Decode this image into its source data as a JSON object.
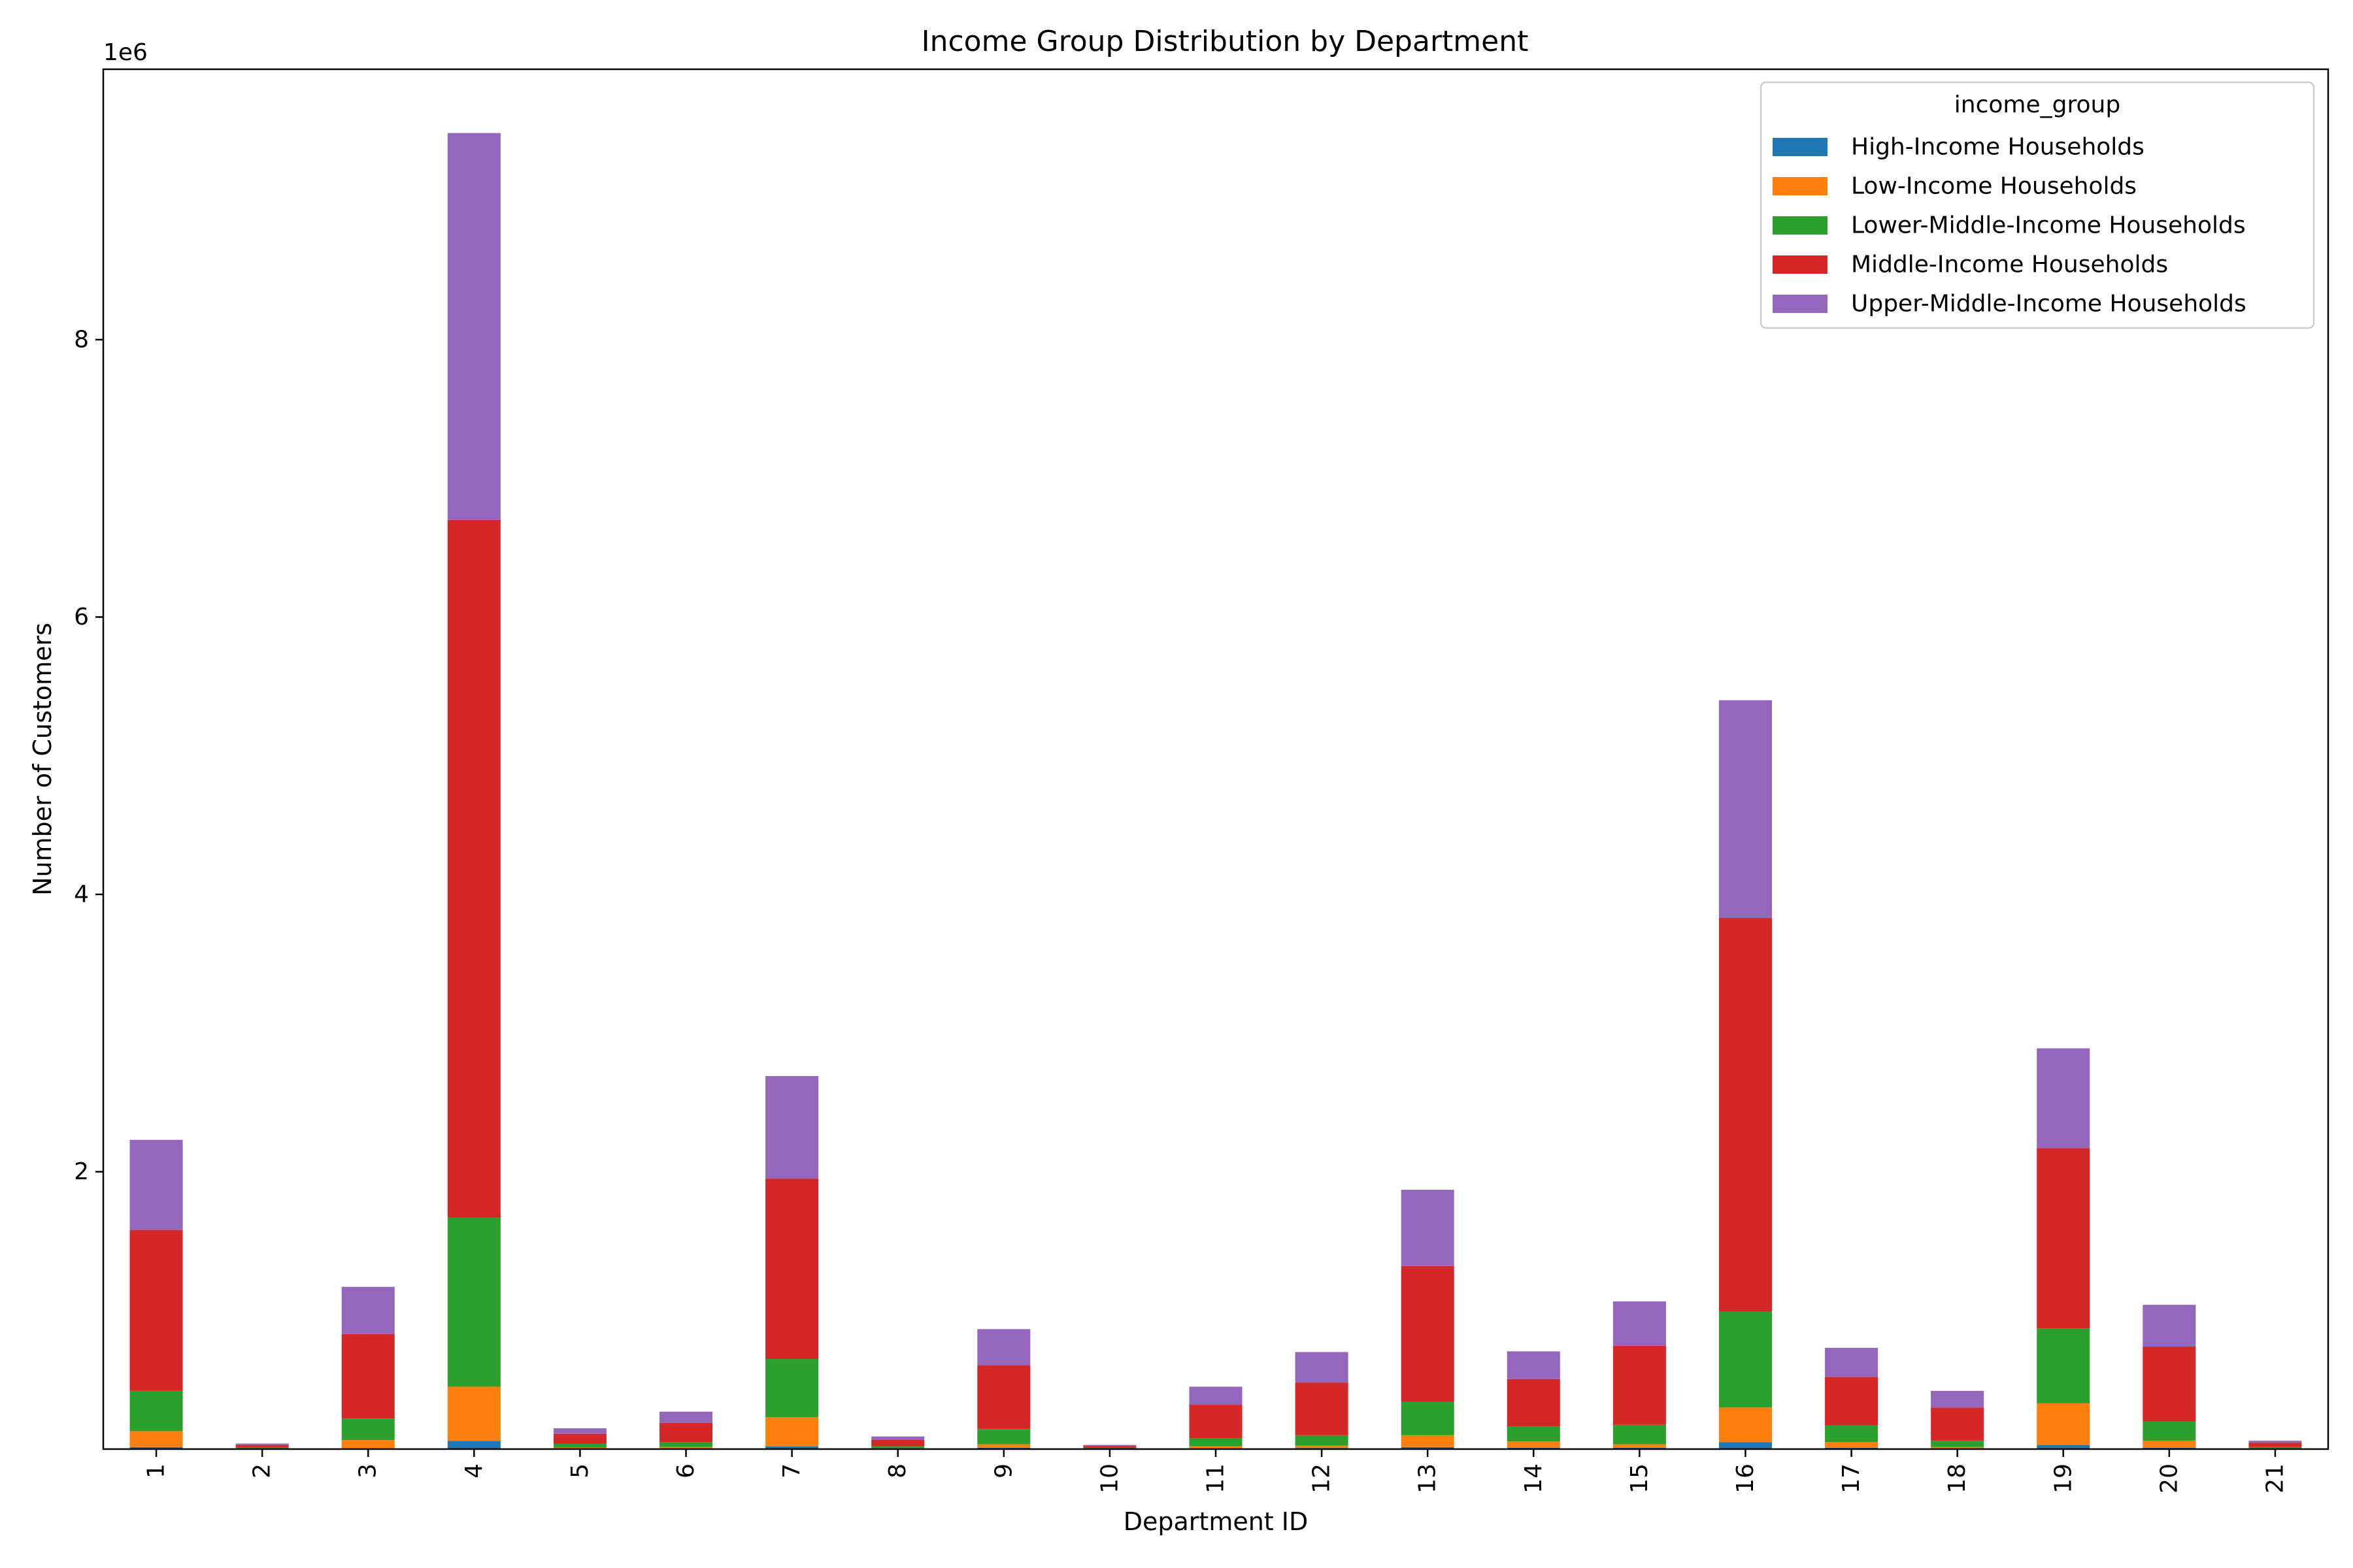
{
  "chart_data": {
    "type": "bar",
    "stacked": true,
    "title": "Income Group Distribution by Department",
    "xlabel": "Department ID",
    "ylabel": "Number of Customers",
    "y_offset_label": "1e6",
    "ylim": [
      0,
      9950000
    ],
    "yticks": [
      2000000,
      4000000,
      6000000,
      8000000
    ],
    "ytick_labels": [
      "2",
      "4",
      "6",
      "8"
    ],
    "legend": {
      "title": "income_group",
      "position": "top-right"
    },
    "categories": [
      "1",
      "2",
      "3",
      "4",
      "5",
      "6",
      "7",
      "8",
      "9",
      "10",
      "11",
      "12",
      "13",
      "14",
      "15",
      "16",
      "17",
      "18",
      "19",
      "20",
      "21"
    ],
    "series": [
      {
        "name": "High-Income Households",
        "color": "#1f77b4",
        "values": [
          15000,
          0,
          5000,
          60000,
          2000,
          3000,
          20000,
          1000,
          10000,
          0,
          5000,
          8000,
          15000,
          10000,
          10000,
          50000,
          10000,
          5000,
          30000,
          10000,
          1000
        ]
      },
      {
        "name": "Low-Income Households",
        "color": "#ff7f0e",
        "values": [
          115000,
          5000,
          60000,
          390000,
          8000,
          12000,
          210000,
          5000,
          25000,
          3000,
          15000,
          17000,
          85000,
          45000,
          25000,
          250000,
          40000,
          10000,
          300000,
          50000,
          4000
        ]
      },
      {
        "name": "Lower-Middle-Income Households",
        "color": "#2ca02c",
        "values": [
          290000,
          5000,
          155000,
          1220000,
          30000,
          35000,
          420000,
          15000,
          110000,
          5000,
          60000,
          75000,
          240000,
          110000,
          140000,
          690000,
          120000,
          45000,
          540000,
          140000,
          10000
        ]
      },
      {
        "name": "Middle-Income Households",
        "color": "#d62728",
        "values": [
          1160000,
          20000,
          610000,
          5030000,
          70000,
          140000,
          1300000,
          45000,
          460000,
          15000,
          240000,
          380000,
          980000,
          340000,
          570000,
          2840000,
          350000,
          240000,
          1300000,
          540000,
          30000
        ]
      },
      {
        "name": "Upper-Middle-Income Households",
        "color": "#9467bd",
        "values": [
          650000,
          10000,
          340000,
          2790000,
          40000,
          80000,
          740000,
          25000,
          260000,
          7000,
          130000,
          220000,
          550000,
          200000,
          320000,
          1570000,
          210000,
          120000,
          720000,
          300000,
          15000
        ]
      }
    ]
  }
}
